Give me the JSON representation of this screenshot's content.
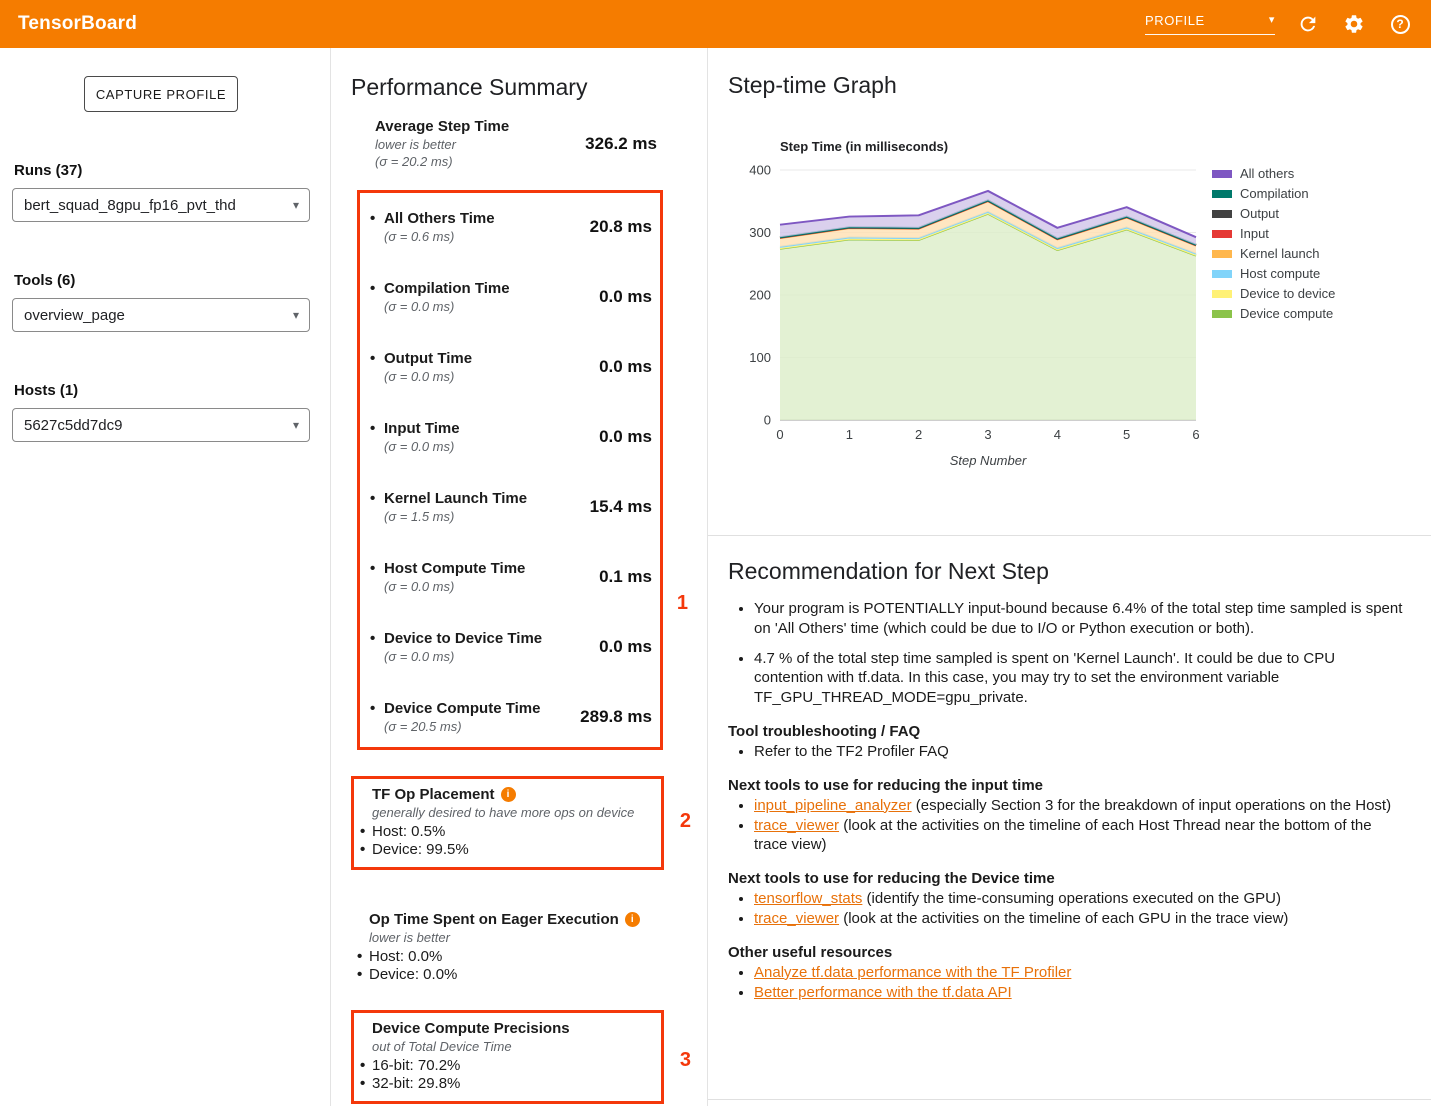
{
  "colors": {
    "brand": "#f57c00",
    "annotation": "#f4380b",
    "link": "#e8710a"
  },
  "header": {
    "title": "TensorBoard",
    "nav_value": "PROFILE"
  },
  "sidebar": {
    "capture_button": "CAPTURE PROFILE",
    "runs_label": "Runs (37)",
    "runs_value": "bert_squad_8gpu_fp16_pvt_thd",
    "tools_label": "Tools (6)",
    "tools_value": "overview_page",
    "hosts_label": "Hosts (1)",
    "hosts_value": "5627c5dd7dc9"
  },
  "summary": {
    "title": "Performance Summary",
    "average": {
      "name": "Average Step Time",
      "note": "lower is better",
      "sigma": "(σ = 20.2 ms)",
      "value": "326.2 ms"
    },
    "metrics": [
      {
        "name": "All Others Time",
        "sigma": "(σ = 0.6 ms)",
        "value": "20.8 ms"
      },
      {
        "name": "Compilation Time",
        "sigma": "(σ = 0.0 ms)",
        "value": "0.0 ms"
      },
      {
        "name": "Output Time",
        "sigma": "(σ = 0.0 ms)",
        "value": "0.0 ms"
      },
      {
        "name": "Input Time",
        "sigma": "(σ = 0.0 ms)",
        "value": "0.0 ms"
      },
      {
        "name": "Kernel Launch Time",
        "sigma": "(σ = 1.5 ms)",
        "value": "15.4 ms"
      },
      {
        "name": "Host Compute Time",
        "sigma": "(σ = 0.0 ms)",
        "value": "0.1 ms"
      },
      {
        "name": "Device to Device Time",
        "sigma": "(σ = 0.0 ms)",
        "value": "0.0 ms"
      },
      {
        "name": "Device Compute Time",
        "sigma": "(σ = 20.5 ms)",
        "value": "289.8 ms"
      }
    ],
    "annotations": {
      "box1": "1",
      "box2": "2",
      "box3": "3"
    },
    "tf_op_placement": {
      "title": "TF Op Placement",
      "note": "generally desired to have more ops on device",
      "items": [
        "Host: 0.5%",
        "Device: 99.5%"
      ]
    },
    "eager": {
      "title": "Op Time Spent on Eager Execution",
      "note": "lower is better",
      "items": [
        "Host: 0.0%",
        "Device: 0.0%"
      ]
    },
    "precisions": {
      "title": "Device Compute Precisions",
      "note": "out of Total Device Time",
      "items": [
        "16-bit: 70.2%",
        "32-bit: 29.8%"
      ]
    }
  },
  "graph": {
    "title": "Step-time Graph"
  },
  "chart_data": {
    "type": "area",
    "stacked": true,
    "title": "Step Time (in milliseconds)",
    "xlabel": "Step Number",
    "x": [
      0,
      1,
      2,
      3,
      4,
      5,
      6
    ],
    "ylim": [
      0,
      400
    ],
    "yticks": [
      0,
      100,
      200,
      300,
      400
    ],
    "grid": true,
    "legend_position": "right",
    "series": [
      {
        "name": "Device compute",
        "color": "#8bc34a",
        "fill": "#dcedc8",
        "values": [
          274,
          289,
          288,
          330,
          272,
          305,
          263
        ]
      },
      {
        "name": "Device to device",
        "color": "#fff176",
        "fill": "#fff9c4",
        "values": [
          1,
          1,
          1,
          1,
          1,
          1,
          1
        ]
      },
      {
        "name": "Host compute",
        "color": "#81d4fa",
        "fill": "#e1f5fe",
        "values": [
          2,
          2,
          2,
          2,
          2,
          2,
          2
        ]
      },
      {
        "name": "Kernel launch",
        "color": "#ffb74d",
        "fill": "#ffe0b2",
        "values": [
          14,
          15,
          15,
          17,
          14,
          16,
          13
        ]
      },
      {
        "name": "Input",
        "color": "#e53935",
        "fill": "#ffcdd2",
        "values": [
          0.5,
          0.5,
          0.5,
          0.5,
          0.5,
          0.5,
          0.5
        ]
      },
      {
        "name": "Output",
        "color": "#424242",
        "fill": "#bdbdbd",
        "values": [
          0.5,
          0.5,
          0.5,
          0.5,
          0.5,
          0.5,
          0.5
        ]
      },
      {
        "name": "Compilation",
        "color": "#00796b",
        "fill": "#b2dfdb",
        "values": [
          0.5,
          0.5,
          0.5,
          0.5,
          0.5,
          0.5,
          0.5
        ]
      },
      {
        "name": "All others",
        "color": "#7e57c2",
        "fill": "#d1c4e9",
        "values": [
          20,
          17,
          20,
          15,
          17,
          15,
          12
        ]
      }
    ]
  },
  "recommendation": {
    "title": "Recommendation for Next Step",
    "bullets": [
      {
        "text": "Your program is POTENTIALLY input-bound because 6.4% of the total step time sampled is spent on 'All Others' time (which could be due to I/O or Python execution or both)."
      },
      {
        "text": "4.7 % of the total step time sampled is spent on 'Kernel Launch'. It could be due to CPU contention with tf.data. In this case, you may try to set the environment variable TF_GPU_THREAD_MODE=gpu_private."
      }
    ],
    "sections": [
      {
        "heading": "Tool troubleshooting / FAQ",
        "items": [
          {
            "pre": "Refer to the TF2 Profiler FAQ",
            "link": "",
            "post": ""
          }
        ]
      },
      {
        "heading": "Next tools to use for reducing the input time",
        "items": [
          {
            "pre": "",
            "link": "input_pipeline_analyzer",
            "post": " (especially Section 3 for the breakdown of input operations on the Host)"
          },
          {
            "pre": "",
            "link": "trace_viewer",
            "post": " (look at the activities on the timeline of each Host Thread near the bottom of the trace view)"
          }
        ]
      },
      {
        "heading": "Next tools to use for reducing the Device time",
        "items": [
          {
            "pre": "",
            "link": "tensorflow_stats",
            "post": " (identify the time-consuming operations executed on the GPU)"
          },
          {
            "pre": "",
            "link": "trace_viewer",
            "post": " (look at the activities on the timeline of each GPU in the trace view)"
          }
        ]
      },
      {
        "heading": "Other useful resources",
        "items": [
          {
            "pre": "",
            "link": "Analyze tf.data performance with the TF Profiler",
            "post": ""
          },
          {
            "pre": "",
            "link": "Better performance with the tf.data API",
            "post": ""
          }
        ]
      }
    ]
  }
}
